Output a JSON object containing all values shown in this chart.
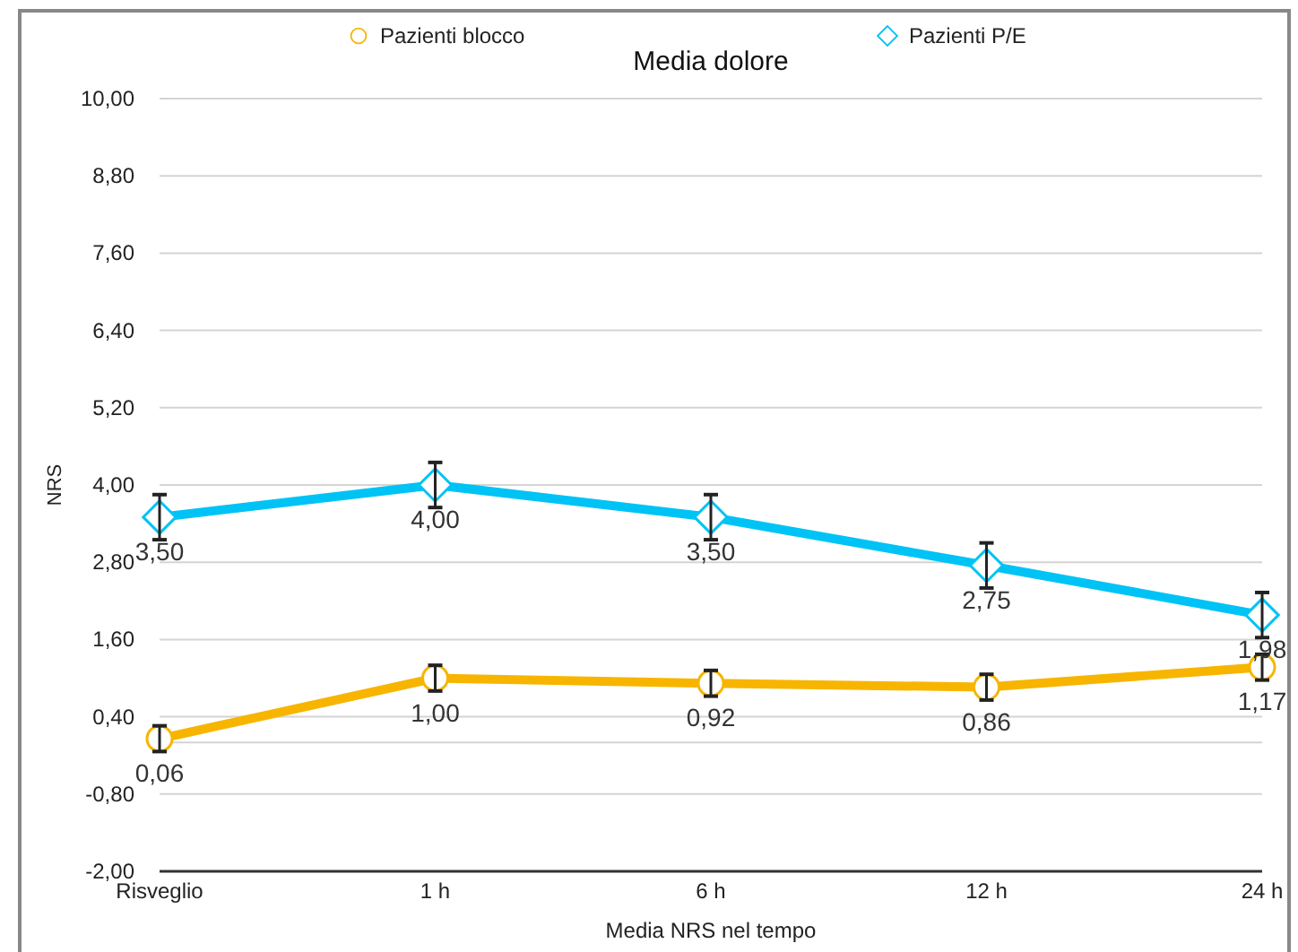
{
  "chart_data": {
    "type": "line",
    "title": "Media dolore",
    "xlabel": "Media NRS nel tempo",
    "ylabel": "NRS",
    "categories": [
      "Risveglio",
      "1 h",
      "6 h",
      "12 h",
      "24 h"
    ],
    "series": [
      {
        "name": "Pazienti blocco",
        "color": "#f7b500",
        "marker": "circle",
        "values": [
          0.06,
          1.0,
          0.92,
          0.86,
          1.17
        ],
        "errors": [
          0.2,
          0.2,
          0.2,
          0.2,
          0.2
        ],
        "value_labels": [
          "0,06",
          "1,00",
          "0,92",
          "0,86",
          "1,17"
        ]
      },
      {
        "name": "Pazienti P/E",
        "color": "#00c3f5",
        "marker": "diamond",
        "values": [
          3.5,
          4.0,
          3.5,
          2.75,
          1.98
        ],
        "errors": [
          0.35,
          0.35,
          0.35,
          0.35,
          0.35
        ],
        "value_labels": [
          "3,50",
          "4,00",
          "3,50",
          "2,75",
          "1,98"
        ]
      }
    ],
    "ylim": [
      -2,
      10
    ],
    "yticks": [
      {
        "value": -2,
        "label": "-2,00"
      },
      {
        "value": -0.8,
        "label": "-0,80"
      },
      {
        "value": 0,
        "label": null
      },
      {
        "value": 0.4,
        "label": "0,40"
      },
      {
        "value": 1.6,
        "label": "1,60"
      },
      {
        "value": 2.8,
        "label": "2,80"
      },
      {
        "value": 4,
        "label": "4,00"
      },
      {
        "value": 5.2,
        "label": "5,20"
      },
      {
        "value": 6.4,
        "label": "6,40"
      },
      {
        "value": 7.6,
        "label": "7,60"
      },
      {
        "value": 8.8,
        "label": "8,80"
      },
      {
        "value": 10,
        "label": "10,00"
      }
    ],
    "grid": "y",
    "legend": "top",
    "line_style": "solid"
  }
}
